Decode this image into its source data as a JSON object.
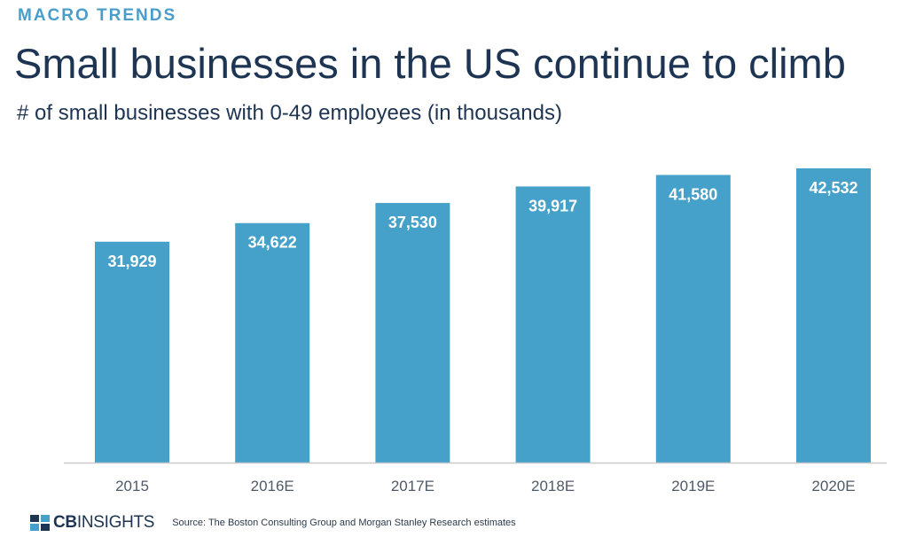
{
  "header": {
    "eyebrow": "MACRO TRENDS",
    "title": "Small businesses in the US continue to climb",
    "subtitle": "# of small businesses with 0-49 employees (in thousands)"
  },
  "footer": {
    "logo_bold": "CB",
    "logo_rest": "INSIGHTS",
    "source": "Source: The Boston Consulting Group and Morgan Stanley Research estimates"
  },
  "colors": {
    "bar": "#45a1c9",
    "axis": "#c9c9c9"
  },
  "chart_data": {
    "type": "bar",
    "title": "Small businesses in the US continue to climb",
    "subtitle": "# of small businesses with 0-49 employees (in thousands)",
    "xlabel": "",
    "ylabel": "",
    "categories": [
      "2015",
      "2016E",
      "2017E",
      "2018E",
      "2019E",
      "2020E"
    ],
    "values": [
      31929,
      34622,
      37530,
      39917,
      41580,
      42532
    ],
    "value_labels": [
      "31,929",
      "34,622",
      "37,530",
      "39,917",
      "41,580",
      "42,532"
    ],
    "ylim": [
      0,
      42532
    ],
    "grid": false,
    "legend": "none"
  }
}
